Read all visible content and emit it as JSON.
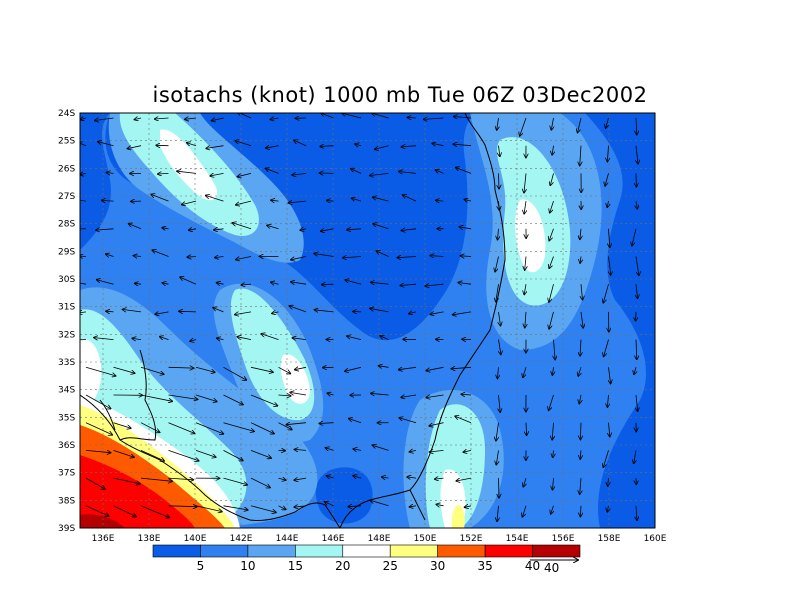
{
  "title": "isotachs (knot) 1000 mb Tue 06Z 03Dec2002",
  "lat_labels": [
    "24S",
    "25S",
    "26S",
    "27S",
    "28S",
    "29S",
    "30S",
    "31S",
    "32S",
    "33S",
    "34S",
    "35S",
    "36S",
    "37S",
    "38S",
    "39S"
  ],
  "lon_labels": [
    "136E",
    "138E",
    "140E",
    "142E",
    "144E",
    "146E",
    "148E",
    "150E",
    "152E",
    "154E",
    "156E",
    "158E",
    "160E"
  ],
  "colorbar": {
    "labels": [
      "5",
      "10",
      "15",
      "20",
      "25",
      "30",
      "35",
      "40"
    ],
    "colors": [
      "#0a5ce6",
      "#2f80f0",
      "#5aa6f2",
      "#a4f6f2",
      "#ffffff",
      "#ffff80",
      "#ff5a00",
      "#ff0000",
      "#b40000"
    ]
  },
  "vector_reference": {
    "label": "40"
  },
  "coastline_color": "#000000"
}
